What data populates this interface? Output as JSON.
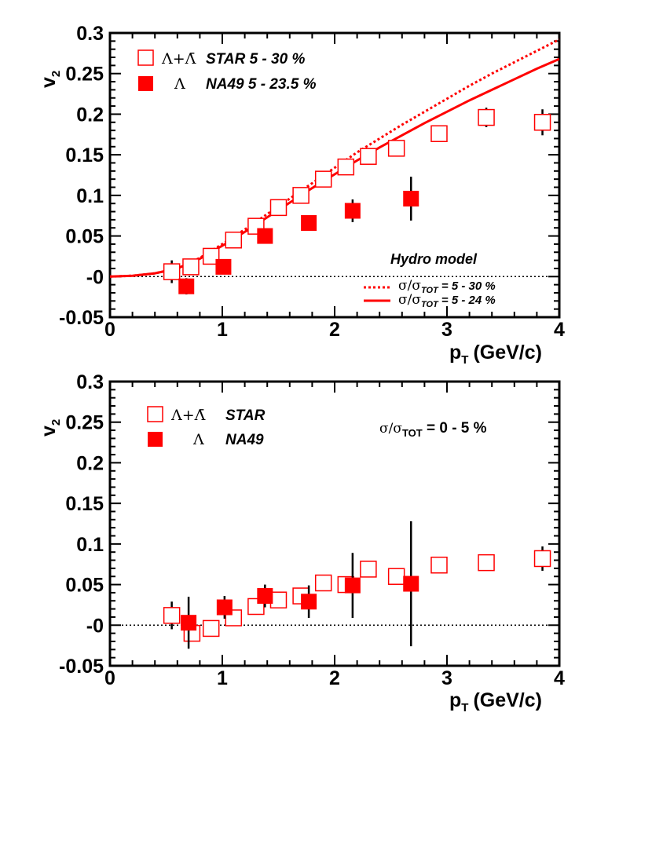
{
  "colors": {
    "data": "#ff0000",
    "axis": "#000000"
  },
  "chart_data": [
    {
      "type": "scatter",
      "xlabel": "p",
      "xlabel_sub": "T",
      "xlabel_unit": "(GeV/c)",
      "ylabel": "v",
      "ylabel_sub": "2",
      "xlim": [
        0,
        4
      ],
      "ylim": [
        -0.05,
        0.3
      ],
      "x_ticks": [
        0,
        1,
        2,
        3,
        4
      ],
      "x_tick_labels": [
        "0",
        "1",
        "2",
        "3",
        "4"
      ],
      "y_ticks": [
        -0.05,
        0,
        0.05,
        0.1,
        0.15,
        0.2,
        0.25,
        0.3
      ],
      "y_tick_labels": [
        "-0.05",
        "-0",
        "0.05",
        "0.1",
        "0.15",
        "0.2",
        "0.25",
        "0.3"
      ],
      "legend": [
        {
          "symbol": "Λ+Λ̄",
          "label": "STAR  5 - 30 %",
          "marker": "open-square"
        },
        {
          "symbol": "Λ",
          "label": "NA49  5 - 23.5 %",
          "marker": "filled-square"
        }
      ],
      "series": [
        {
          "name": "Λ+Λ̄ STAR 5 - 30 %",
          "marker": "open-square",
          "points": [
            {
              "x": 0.55,
              "y": 0.006,
              "err": 0.014
            },
            {
              "x": 0.72,
              "y": 0.012,
              "err": 0.007
            },
            {
              "x": 0.9,
              "y": 0.025,
              "err": 0.005
            },
            {
              "x": 1.1,
              "y": 0.045,
              "err": 0.004
            },
            {
              "x": 1.3,
              "y": 0.062,
              "err": 0.004
            },
            {
              "x": 1.5,
              "y": 0.085,
              "err": 0.004
            },
            {
              "x": 1.7,
              "y": 0.1,
              "err": 0.004
            },
            {
              "x": 1.9,
              "y": 0.12,
              "err": 0.004
            },
            {
              "x": 2.1,
              "y": 0.135,
              "err": 0.004
            },
            {
              "x": 2.3,
              "y": 0.148,
              "err": 0.005
            },
            {
              "x": 2.55,
              "y": 0.158,
              "err": 0.005
            },
            {
              "x": 2.93,
              "y": 0.176,
              "err": 0.006
            },
            {
              "x": 3.35,
              "y": 0.196,
              "err": 0.012
            },
            {
              "x": 3.85,
              "y": 0.19,
              "err": 0.016
            }
          ]
        },
        {
          "name": "Λ NA49 5 - 23.5 %",
          "marker": "filled-square",
          "points": [
            {
              "x": 0.68,
              "y": -0.012,
              "err": 0.01
            },
            {
              "x": 1.01,
              "y": 0.012,
              "err": 0.008
            },
            {
              "x": 1.38,
              "y": 0.05,
              "err": 0.008
            },
            {
              "x": 1.77,
              "y": 0.066,
              "err": 0.007
            },
            {
              "x": 2.16,
              "y": 0.081,
              "err": 0.014
            },
            {
              "x": 2.68,
              "y": 0.096,
              "err": 0.027
            }
          ]
        }
      ],
      "curves": [
        {
          "name": "Hydro σ/σTOT = 5 - 30 %",
          "style": "dotted",
          "x": [
            0,
            0.2,
            0.4,
            0.6,
            0.8,
            1.0,
            1.2,
            1.4,
            1.6,
            1.8,
            2.0,
            2.2,
            2.4,
            2.6,
            2.8,
            3.0,
            3.2,
            3.4,
            3.6,
            3.8,
            4.0
          ],
          "y": [
            0.0,
            0.001,
            0.004,
            0.01,
            0.023,
            0.04,
            0.058,
            0.077,
            0.096,
            0.115,
            0.134,
            0.153,
            0.17,
            0.187,
            0.203,
            0.219,
            0.235,
            0.25,
            0.264,
            0.278,
            0.292
          ]
        },
        {
          "name": "Hydro σ/σTOT = 5 - 24 %",
          "style": "solid",
          "x": [
            0,
            0.2,
            0.4,
            0.6,
            0.8,
            1.0,
            1.2,
            1.4,
            1.6,
            1.8,
            2.0,
            2.2,
            2.4,
            2.6,
            2.8,
            3.0,
            3.2,
            3.4,
            3.6,
            3.8,
            4.0
          ],
          "y": [
            0.0,
            0.001,
            0.004,
            0.01,
            0.022,
            0.038,
            0.055,
            0.073,
            0.091,
            0.109,
            0.126,
            0.143,
            0.159,
            0.174,
            0.189,
            0.203,
            0.217,
            0.23,
            0.243,
            0.256,
            0.268
          ]
        }
      ],
      "annotations": {
        "model_title": "Hydro model",
        "model_lines": [
          {
            "style": "dotted",
            "sigma": "σ/σ",
            "sub": "TOT",
            "text": " = 5 - 30 %"
          },
          {
            "style": "solid",
            "sigma": "σ/σ",
            "sub": "TOT",
            "text": " = 5 - 24 %"
          }
        ]
      }
    },
    {
      "type": "scatter",
      "xlabel": "p",
      "xlabel_sub": "T",
      "xlabel_unit": "(GeV/c)",
      "ylabel": "v",
      "ylabel_sub": "2",
      "xlim": [
        0,
        4
      ],
      "ylim": [
        -0.05,
        0.3
      ],
      "x_ticks": [
        0,
        1,
        2,
        3,
        4
      ],
      "x_tick_labels": [
        "0",
        "1",
        "2",
        "3",
        "4"
      ],
      "y_ticks": [
        -0.05,
        0,
        0.05,
        0.1,
        0.15,
        0.2,
        0.25,
        0.3
      ],
      "y_tick_labels": [
        "-0.05",
        "-0",
        "0.05",
        "0.1",
        "0.15",
        "0.2",
        "0.25",
        "0.3"
      ],
      "legend": [
        {
          "symbol": "Λ+Λ̄",
          "label": "STAR",
          "marker": "open-square"
        },
        {
          "symbol": "Λ",
          "label": "NA49",
          "marker": "filled-square"
        }
      ],
      "series": [
        {
          "name": "Λ+Λ̄ STAR",
          "marker": "open-square",
          "points": [
            {
              "x": 0.55,
              "y": 0.012,
              "err": 0.017
            },
            {
              "x": 0.73,
              "y": -0.01,
              "err": 0.007
            },
            {
              "x": 0.9,
              "y": -0.004,
              "err": 0.006
            },
            {
              "x": 1.1,
              "y": 0.009,
              "err": 0.005
            },
            {
              "x": 1.3,
              "y": 0.023,
              "err": 0.004
            },
            {
              "x": 1.5,
              "y": 0.031,
              "err": 0.004
            },
            {
              "x": 1.7,
              "y": 0.036,
              "err": 0.004
            },
            {
              "x": 1.9,
              "y": 0.052,
              "err": 0.004
            },
            {
              "x": 2.1,
              "y": 0.05,
              "err": 0.005
            },
            {
              "x": 2.3,
              "y": 0.069,
              "err": 0.005
            },
            {
              "x": 2.55,
              "y": 0.06,
              "err": 0.005
            },
            {
              "x": 2.93,
              "y": 0.074,
              "err": 0.006
            },
            {
              "x": 3.35,
              "y": 0.077,
              "err": 0.007
            },
            {
              "x": 3.85,
              "y": 0.082,
              "err": 0.015
            }
          ]
        },
        {
          "name": "Λ NA49",
          "marker": "filled-square",
          "points": [
            {
              "x": 0.7,
              "y": 0.003,
              "err": 0.032
            },
            {
              "x": 1.02,
              "y": 0.022,
              "err": 0.014
            },
            {
              "x": 1.38,
              "y": 0.036,
              "err": 0.014
            },
            {
              "x": 1.77,
              "y": 0.029,
              "err": 0.02
            },
            {
              "x": 2.16,
              "y": 0.049,
              "err": 0.04
            },
            {
              "x": 2.68,
              "y": 0.051,
              "err": 0.077
            }
          ]
        }
      ],
      "annotations": {
        "centrality": {
          "sigma": "σ/σ",
          "sub": "TOT",
          "text": " = 0 - 5 %"
        }
      }
    }
  ]
}
